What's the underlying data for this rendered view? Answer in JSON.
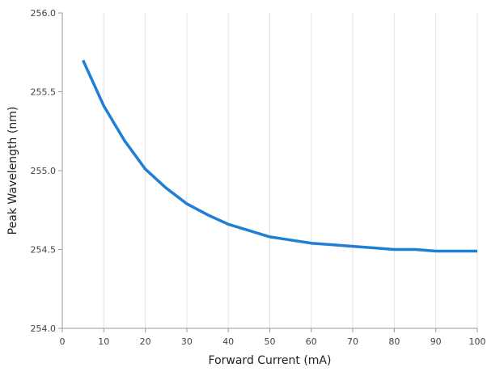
{
  "chart_data": {
    "type": "line",
    "title": "",
    "xlabel": "Forward Current (mA)",
    "ylabel": "Peak Wavelength (nm)",
    "xlim": [
      0,
      100
    ],
    "ylim": [
      254.0,
      256.0
    ],
    "x_ticks": [
      0,
      10,
      20,
      30,
      40,
      50,
      60,
      70,
      80,
      90,
      100
    ],
    "y_ticks": [
      254.0,
      254.5,
      255.0,
      255.5,
      256.0
    ],
    "x_tick_labels": [
      "0",
      "10",
      "20",
      "30",
      "40",
      "50",
      "60",
      "70",
      "80",
      "90",
      "100"
    ],
    "y_tick_labels": [
      "254.0",
      "254.5",
      "255.0",
      "255.5",
      "256.0"
    ],
    "grid": "vertical",
    "series": [
      {
        "color": "#1f7fd6",
        "x": [
          5,
          10,
          15,
          20,
          25,
          30,
          35,
          40,
          45,
          50,
          55,
          60,
          65,
          70,
          75,
          80,
          85,
          90,
          95,
          100
        ],
        "y": [
          255.7,
          255.41,
          255.19,
          255.01,
          254.89,
          254.79,
          254.72,
          254.66,
          254.62,
          254.58,
          254.56,
          254.54,
          254.53,
          254.52,
          254.51,
          254.5,
          254.5,
          254.49,
          254.49,
          254.49
        ]
      }
    ]
  }
}
